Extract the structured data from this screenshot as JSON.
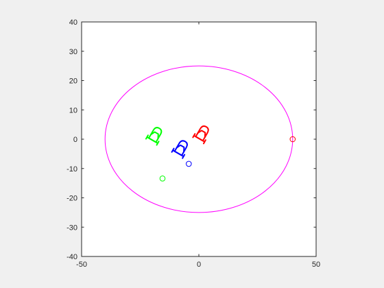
{
  "chart_data": {
    "type": "scatter",
    "title": "",
    "xlabel": "",
    "ylabel": "",
    "xlim": [
      -50,
      50
    ],
    "ylim": [
      -40,
      40
    ],
    "grid": false,
    "box": true,
    "x_ticks": [
      -50,
      0,
      50
    ],
    "x_tick_labels": [
      "-50",
      "0",
      "50"
    ],
    "y_ticks": [
      40,
      30,
      20,
      10,
      0,
      -10,
      -20,
      -30,
      -40
    ],
    "y_tick_labels": [
      "40",
      "30",
      "20",
      "10",
      "0",
      "-10",
      "-20",
      "-30",
      "-40"
    ],
    "ellipse": {
      "center": [
        0,
        0
      ],
      "semi_axis_x": 40,
      "semi_axis_y": 25,
      "color": "#ff00ff"
    },
    "targets": [
      {
        "color": "#ff0000",
        "x": 40,
        "y": 0
      },
      {
        "color": "#0000ff",
        "x": -4.3,
        "y": -8.4
      },
      {
        "color": "#00ff00",
        "x": -15.5,
        "y": -13.4
      }
    ],
    "vehicles": [
      {
        "color": "#ff0000",
        "x": 1.5,
        "y": 2,
        "heading_deg": 60
      },
      {
        "color": "#0000ff",
        "x": -7.5,
        "y": -3,
        "heading_deg": 60
      },
      {
        "color": "#00ff00",
        "x": -18.5,
        "y": 1.5,
        "heading_deg": 60
      }
    ]
  }
}
